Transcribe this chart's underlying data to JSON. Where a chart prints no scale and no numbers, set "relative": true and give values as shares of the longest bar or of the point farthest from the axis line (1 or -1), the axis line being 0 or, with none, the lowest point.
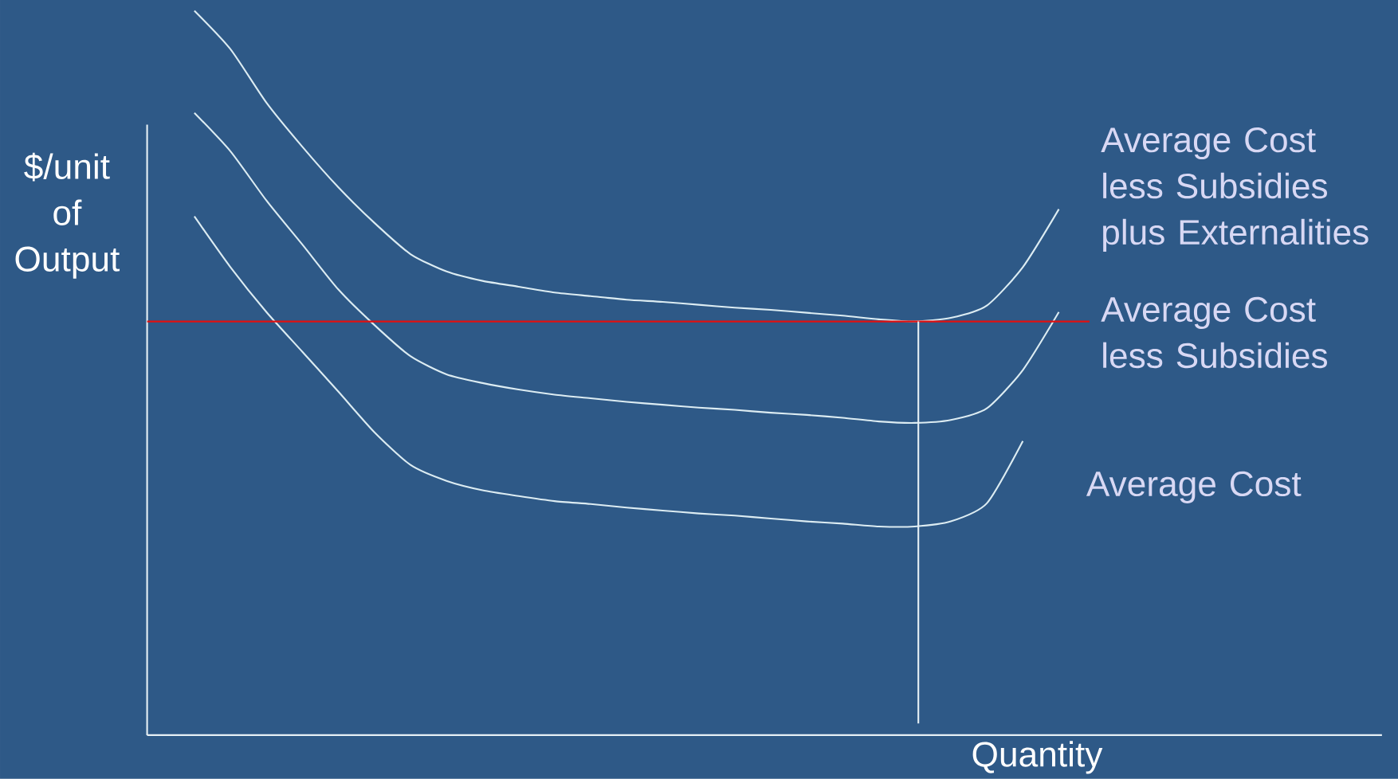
{
  "chart_data": {
    "type": "line",
    "relative": true,
    "xlabel": "Quantity",
    "ylabel": "$/unit of Output",
    "marker": "none",
    "line_style": "solid",
    "categories": [
      null,
      null,
      null,
      null,
      null,
      null,
      null,
      null,
      null,
      null,
      null,
      null,
      null,
      null,
      null,
      null,
      null,
      null,
      null,
      null,
      null,
      null,
      null,
      null,
      null
    ],
    "series": [
      {
        "name": "Average Cost less Subsidies plus Externalities",
        "color": "#dcecf2",
        "values": [
          1,
          0.947,
          0.873,
          0.812,
          0.756,
          0.707,
          0.664,
          0.64,
          0.627,
          0.619,
          0.611,
          0.606,
          0.601,
          0.598,
          0.594,
          0.59,
          0.587,
          0.583,
          0.579,
          0.574,
          0.571,
          0.576,
          0.593,
          0.646,
          0.726
        ]
      },
      {
        "name": "Average Cost less Subsidies",
        "color": "#dcecf2",
        "values": [
          0.859,
          0.806,
          0.738,
          0.677,
          0.615,
          0.566,
          0.523,
          0.498,
          0.486,
          0.477,
          0.47,
          0.465,
          0.46,
          0.456,
          0.452,
          0.449,
          0.445,
          0.442,
          0.438,
          0.433,
          0.431,
          0.435,
          0.451,
          0.504,
          0.584
        ]
      },
      {
        "name": "Average Cost",
        "color": "#dcecf2",
        "values": [
          0.716,
          0.646,
          0.584,
          0.529,
          0.474,
          0.418,
          0.373,
          0.351,
          0.338,
          0.33,
          0.323,
          0.319,
          0.314,
          0.31,
          0.306,
          0.303,
          0.299,
          0.295,
          0.292,
          0.288,
          0.288,
          0.295,
          0.32,
          0.406,
          null
        ]
      }
    ],
    "ref_lines": [
      {
        "axis": "y",
        "value": 0.571,
        "color": "#e01010"
      }
    ]
  }
}
